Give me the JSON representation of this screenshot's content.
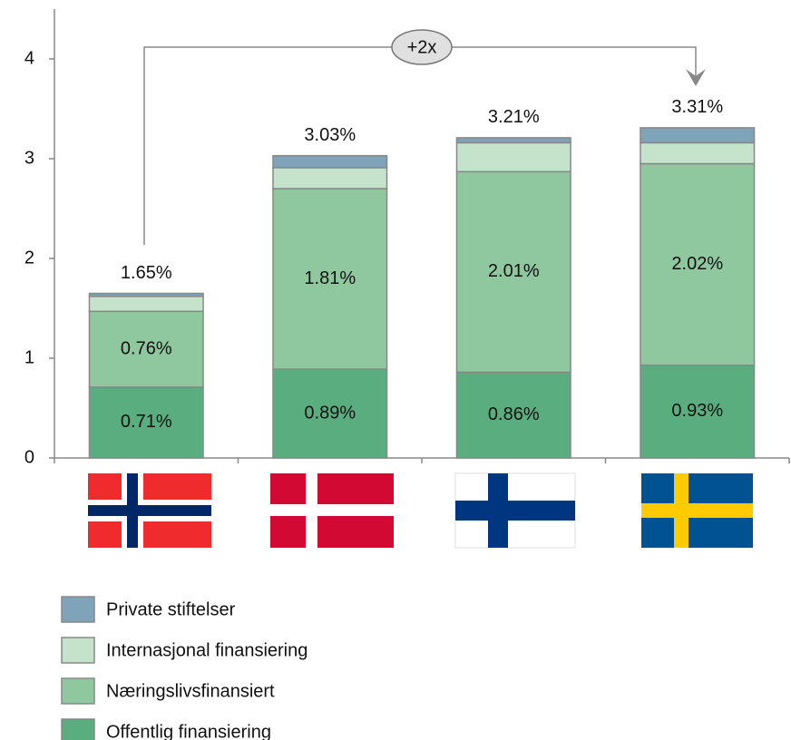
{
  "chart_data": {
    "type": "stacked_bar",
    "categories": [
      null,
      null,
      null,
      null
    ],
    "series": [
      {
        "name": "Private stiftelser",
        "color": "#7fa3b8",
        "values": [
          0.03,
          0.12,
          0.05,
          0.15
        ]
      },
      {
        "name": "Internasjonal finansiering",
        "color": "#c5e3cb",
        "values": [
          0.15,
          0.21,
          0.29,
          0.21
        ]
      },
      {
        "name": "Næringslivsfinansiert",
        "color": "#8fc79f",
        "values": [
          0.76,
          1.81,
          2.01,
          2.02
        ],
        "value_labels": [
          "0.76%",
          "1.81%",
          "2.01%",
          "2.02%"
        ]
      },
      {
        "name": "Offentlig finansiering",
        "color": "#5aad7f",
        "values": [
          0.71,
          0.89,
          0.86,
          0.93
        ],
        "value_labels": [
          "0.71%",
          "0.89%",
          "0.86%",
          "0.93%"
        ]
      }
    ],
    "totals": [
      1.65,
      3.03,
      3.21,
      3.31
    ],
    "total_labels": [
      "1.65%",
      "3.03%",
      "3.21%",
      "3.31%"
    ],
    "annotation": "+2x",
    "ylim": [
      0,
      4.5
    ],
    "yticks": [
      0,
      1,
      2,
      3,
      4
    ]
  }
}
